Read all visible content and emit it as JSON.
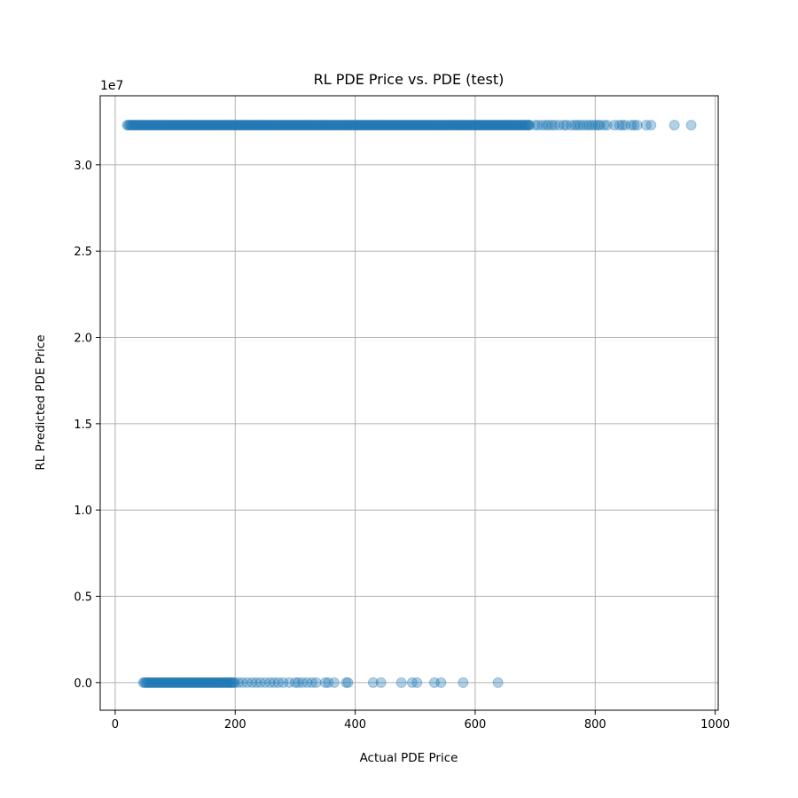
{
  "chart_data": {
    "type": "scatter",
    "title": "RL PDE Price vs. PDE (test)",
    "xlabel": "Actual PDE Price",
    "ylabel": "RL Predicted PDE Price",
    "y_offset_label": "1e7",
    "xlim": [
      -25,
      1005
    ],
    "ylim": [
      -0.16,
      3.4
    ],
    "x_ticks": [
      0,
      200,
      400,
      600,
      800,
      1000
    ],
    "x_tick_labels": [
      "0",
      "200",
      "400",
      "600",
      "800",
      "1000"
    ],
    "y_ticks": [
      0.0,
      0.5,
      1.0,
      1.5,
      2.0,
      2.5,
      3.0
    ],
    "y_tick_labels": [
      "0.0",
      "0.5",
      "1.0",
      "1.5",
      "2.0",
      "2.5",
      "3.0"
    ],
    "grid": true,
    "marker_color": "#1f77b4",
    "marker_alpha": 0.35,
    "series": [
      {
        "values_label_note": "",
        "y_value": 3.23,
        "dense_range": [
          20,
          690
        ],
        "x_sparse": [
          690,
          700,
          705,
          712,
          718,
          722,
          728,
          733,
          740,
          748,
          752,
          760,
          766,
          770,
          775,
          780,
          786,
          790,
          795,
          800,
          805,
          808,
          815,
          820,
          832,
          840,
          845,
          850,
          860,
          865,
          870,
          885,
          893,
          932,
          960
        ]
      },
      {
        "values_label_note": "",
        "y_value": 0.0,
        "dense_range": [
          47,
          200
        ],
        "x_sparse": [
          205,
          212,
          220,
          228,
          235,
          242,
          250,
          258,
          265,
          272,
          280,
          290,
          300,
          305,
          312,
          320,
          328,
          335,
          350,
          355,
          365,
          385,
          388,
          430,
          443,
          477,
          495,
          503,
          532,
          543,
          580,
          638
        ]
      }
    ]
  }
}
